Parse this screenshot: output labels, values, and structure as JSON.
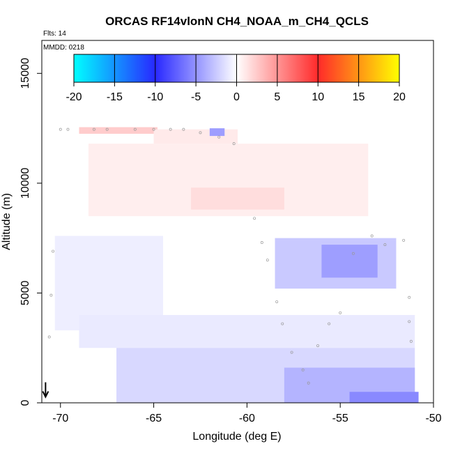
{
  "chart_data": {
    "type": "heatmap",
    "title": "ORCAS RF14vlonN CH4_NOAA_m_CH4_QCLS",
    "flights_label": "Flts: 14",
    "date_label": "MMDD: 0218",
    "xlabel": "Longitude (deg E)",
    "ylabel": "Altitude (m)",
    "xlim": [
      -71,
      -50
    ],
    "ylim": [
      0,
      16500
    ],
    "x_ticks": [
      -70,
      -65,
      -60,
      -55,
      -50
    ],
    "x_tick_labels": [
      "-70",
      "-65",
      "-60",
      "-55",
      "-50"
    ],
    "y_ticks": [
      0,
      5000,
      10000,
      15000
    ],
    "y_tick_labels": [
      "0",
      "5000",
      "10000",
      "15000"
    ],
    "colorbar": {
      "range": [
        -20,
        20
      ],
      "ticks": [
        -20,
        -15,
        -10,
        -5,
        0,
        5,
        10,
        15,
        20
      ],
      "tick_labels": [
        "-20",
        "-15",
        "-10",
        "-5",
        "0",
        "5",
        "10",
        "15",
        "20"
      ],
      "colors": {
        "-20": "#00ffff",
        "-10": "#2828ff",
        "0": "#ffffff",
        "10": "#ff2a2a",
        "20": "#ffff00"
      }
    },
    "regions": [
      {
        "name": "upper-positive",
        "lon": [
          -68.5,
          -53.5
        ],
        "alt": [
          8500,
          11800
        ],
        "value": 0.8
      },
      {
        "name": "upper-positive-core",
        "lon": [
          -63,
          -58
        ],
        "alt": [
          8800,
          9800
        ],
        "value": 1.6
      },
      {
        "name": "top-layer-positive",
        "lon": [
          -69.0,
          -64.8
        ],
        "alt": [
          12250,
          12550
        ],
        "value": 2.4
      },
      {
        "name": "top-layer-mixed",
        "lon": [
          -65.0,
          -60.5
        ],
        "alt": [
          11800,
          12450
        ],
        "value": 1.0
      },
      {
        "name": "top-layer-negative",
        "lon": [
          -62.0,
          -61.2
        ],
        "alt": [
          12150,
          12500
        ],
        "value": -4.5
      },
      {
        "name": "west-column-negative",
        "lon": [
          -70.3,
          -64.5
        ],
        "alt": [
          3300,
          7600
        ],
        "value": -0.8
      },
      {
        "name": "east-mid-negative",
        "lon": [
          -58.5,
          -52.0
        ],
        "alt": [
          5200,
          7500
        ],
        "value": -2.5
      },
      {
        "name": "east-mid-core",
        "lon": [
          -56.0,
          -53.0
        ],
        "alt": [
          5700,
          7200
        ],
        "value": -4.5
      },
      {
        "name": "lower-layer-negative",
        "lon": [
          -69.0,
          -51.0
        ],
        "alt": [
          2500,
          4000
        ],
        "value": -1.0
      },
      {
        "name": "boundary-layer-negative",
        "lon": [
          -67.0,
          -51.0
        ],
        "alt": [
          0,
          2500
        ],
        "value": -1.8
      },
      {
        "name": "boundary-layer-east",
        "lon": [
          -58.0,
          -51.0
        ],
        "alt": [
          0,
          1600
        ],
        "value": -3.5
      },
      {
        "name": "surface-east",
        "lon": [
          -54.5,
          -50.8
        ],
        "alt": [
          0,
          500
        ],
        "value": -5.5
      }
    ],
    "flight_points": [
      {
        "lon": -70.0,
        "alt": 12450
      },
      {
        "lon": -69.6,
        "alt": 12450
      },
      {
        "lon": -68.2,
        "alt": 12450
      },
      {
        "lon": -67.5,
        "alt": 12450
      },
      {
        "lon": -66.0,
        "alt": 12450
      },
      {
        "lon": -65.0,
        "alt": 12450
      },
      {
        "lon": -64.1,
        "alt": 12450
      },
      {
        "lon": -63.4,
        "alt": 12450
      },
      {
        "lon": -62.5,
        "alt": 12300
      },
      {
        "lon": -61.5,
        "alt": 12100
      },
      {
        "lon": -60.7,
        "alt": 11800
      },
      {
        "lon": -59.6,
        "alt": 8400
      },
      {
        "lon": -59.2,
        "alt": 7300
      },
      {
        "lon": -58.9,
        "alt": 6500
      },
      {
        "lon": -58.4,
        "alt": 4600
      },
      {
        "lon": -58.1,
        "alt": 3600
      },
      {
        "lon": -57.6,
        "alt": 2300
      },
      {
        "lon": -57.0,
        "alt": 1500
      },
      {
        "lon": -56.7,
        "alt": 900
      },
      {
        "lon": -56.2,
        "alt": 2600
      },
      {
        "lon": -55.6,
        "alt": 3600
      },
      {
        "lon": -55.0,
        "alt": 4100
      },
      {
        "lon": -54.3,
        "alt": 6800
      },
      {
        "lon": -53.3,
        "alt": 7600
      },
      {
        "lon": -52.6,
        "alt": 7200
      },
      {
        "lon": -51.6,
        "alt": 7400
      },
      {
        "lon": -51.3,
        "alt": 4800
      },
      {
        "lon": -51.3,
        "alt": 3700
      },
      {
        "lon": -51.2,
        "alt": 2800
      },
      {
        "lon": -70.4,
        "alt": 6900
      },
      {
        "lon": -70.5,
        "alt": 4900
      },
      {
        "lon": -70.6,
        "alt": 3000
      }
    ],
    "marker": {
      "type": "down-arrow",
      "lon": -70.8,
      "alt": 300
    }
  }
}
